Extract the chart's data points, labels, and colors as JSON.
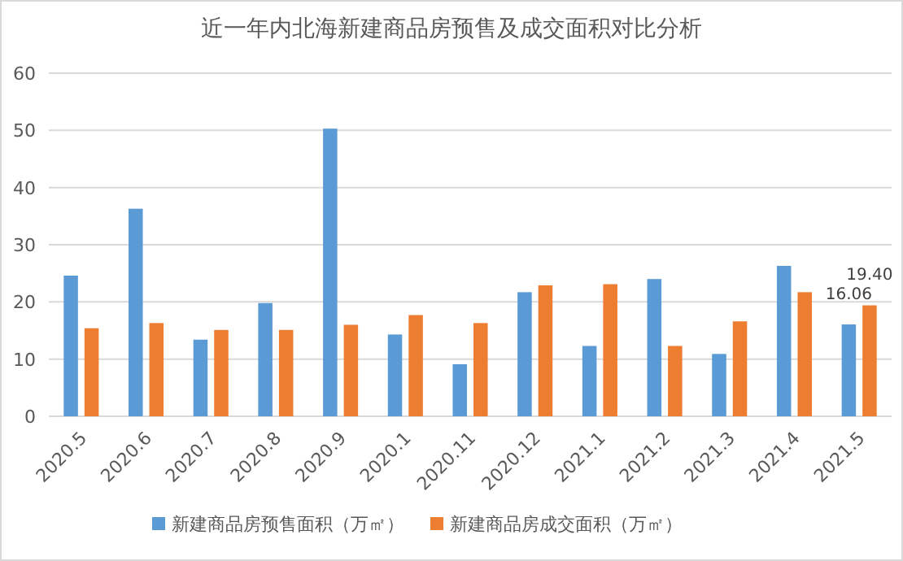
{
  "chart_data": {
    "type": "bar",
    "title": "近一年内北海新建商品房预售及成交面积对比分析",
    "categories": [
      "2020.5",
      "2020.6",
      "2020.7",
      "2020.8",
      "2020.9",
      "2020.1",
      "2020.11",
      "2020.12",
      "2021.1",
      "2021.2",
      "2021.3",
      "2021.4",
      "2021.5"
    ],
    "series": [
      {
        "name": "新建商品房预售面积（万㎡）",
        "color": "#5b9bd5",
        "values": [
          24.6,
          36.3,
          13.4,
          19.8,
          50.3,
          14.3,
          9.1,
          21.7,
          12.3,
          24.0,
          10.9,
          26.3,
          16.06
        ],
        "value_labels": [
          null,
          null,
          null,
          null,
          null,
          null,
          null,
          null,
          null,
          null,
          null,
          null,
          "16.06"
        ]
      },
      {
        "name": "新建商品房成交面积（万㎡）",
        "color": "#ed7d31",
        "values": [
          15.4,
          16.3,
          15.1,
          15.1,
          16.0,
          17.7,
          16.3,
          22.9,
          23.1,
          12.3,
          16.6,
          21.7,
          19.4
        ],
        "value_labels": [
          null,
          null,
          null,
          null,
          null,
          null,
          null,
          null,
          null,
          null,
          null,
          null,
          "19.40"
        ]
      }
    ],
    "ylim": [
      0,
      60
    ],
    "yticks": [
      0,
      10,
      20,
      30,
      40,
      50,
      60
    ],
    "grid": "y",
    "legend": "bottom"
  }
}
